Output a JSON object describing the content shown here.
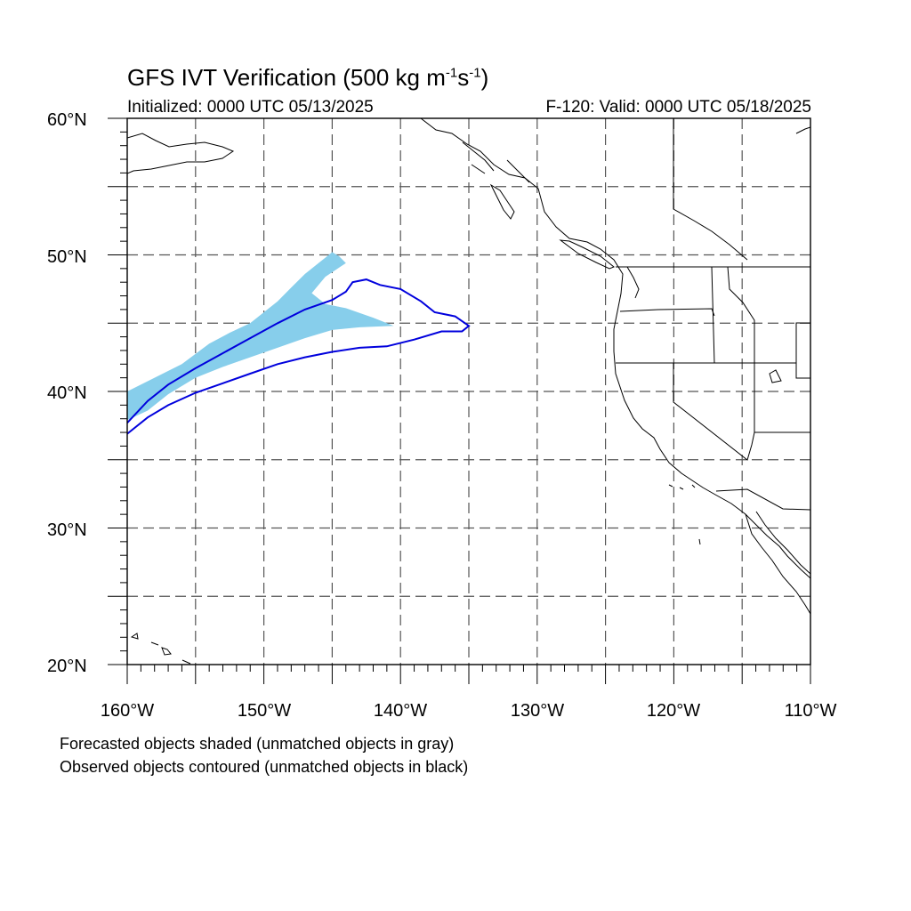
{
  "title": {
    "main": "GFS IVT Verification (500 kg m",
    "sup1": "-1",
    "mid": "s",
    "sup2": "-1",
    "end": ")"
  },
  "subtitle_left": "Initialized: 0000 UTC 05/13/2025",
  "subtitle_right": "F-120: Valid: 0000 UTC 05/18/2025",
  "map": {
    "lon_range": [
      -160,
      -110
    ],
    "lat_range": [
      20,
      60
    ],
    "lat_ticks": [
      {
        "value": 60,
        "label": "60°N"
      },
      {
        "value": 50,
        "label": "50°N"
      },
      {
        "value": 40,
        "label": "40°N"
      },
      {
        "value": 30,
        "label": "30°N"
      },
      {
        "value": 20,
        "label": "20°N"
      }
    ],
    "lon_ticks": [
      {
        "value": -160,
        "label": "160°W"
      },
      {
        "value": -150,
        "label": "150°W"
      },
      {
        "value": -140,
        "label": "140°W"
      },
      {
        "value": -130,
        "label": "130°W"
      },
      {
        "value": -120,
        "label": "120°W"
      },
      {
        "value": -110,
        "label": "110°W"
      }
    ],
    "grid_spacing_deg": 5,
    "forecast_fill_color": "#87ceeb",
    "observed_contour_color": "#0000dd",
    "forecast_object": [
      [
        -160,
        40
      ],
      [
        -158,
        41
      ],
      [
        -156,
        42
      ],
      [
        -154,
        43.5
      ],
      [
        -152.5,
        44.3
      ],
      [
        -151,
        45
      ],
      [
        -150,
        45.8
      ],
      [
        -149,
        46.6
      ],
      [
        -148,
        47.6
      ],
      [
        -147,
        48.6
      ],
      [
        -146,
        49.4
      ],
      [
        -145.5,
        49.8
      ],
      [
        -145,
        50.2
      ],
      [
        -144.5,
        49.9
      ],
      [
        -144,
        49.4
      ],
      [
        -145.5,
        48.4
      ],
      [
        -146.5,
        47.2
      ],
      [
        -145.5,
        46.4
      ],
      [
        -144,
        46.1
      ],
      [
        -142,
        45.4
      ],
      [
        -140.5,
        44.8
      ],
      [
        -143,
        44.7
      ],
      [
        -145,
        44.5
      ],
      [
        -147,
        43.9
      ],
      [
        -149,
        43.2
      ],
      [
        -151,
        42.5
      ],
      [
        -153,
        41.8
      ],
      [
        -155,
        41
      ],
      [
        -157,
        39.8
      ],
      [
        -158.5,
        38.6
      ],
      [
        -160,
        37.9
      ]
    ],
    "observed_object": [
      [
        -160,
        37.7
      ],
      [
        -158.5,
        39.3
      ],
      [
        -157,
        40.5
      ],
      [
        -155,
        41.7
      ],
      [
        -153,
        42.8
      ],
      [
        -151,
        43.9
      ],
      [
        -149,
        45
      ],
      [
        -147,
        46
      ],
      [
        -145,
        46.7
      ],
      [
        -144,
        47.3
      ],
      [
        -143.5,
        48
      ],
      [
        -142.5,
        48.2
      ],
      [
        -141.5,
        47.8
      ],
      [
        -140,
        47.5
      ],
      [
        -138.5,
        46.6
      ],
      [
        -137.5,
        45.8
      ],
      [
        -136,
        45.5
      ],
      [
        -135,
        44.8
      ],
      [
        -135.5,
        44.4
      ],
      [
        -137,
        44.4
      ],
      [
        -139,
        43.8
      ],
      [
        -141,
        43.3
      ],
      [
        -143,
        43.2
      ],
      [
        -145,
        42.9
      ],
      [
        -147,
        42.5
      ],
      [
        -149,
        42
      ],
      [
        -151,
        41.3
      ],
      [
        -153,
        40.6
      ],
      [
        -155,
        39.9
      ],
      [
        -157,
        39
      ],
      [
        -158.5,
        38.1
      ],
      [
        -160,
        36.9
      ]
    ]
  },
  "caption_line1": "Forecasted objects shaded (unmatched objects in gray)",
  "caption_line2": "Observed objects contoured (unmatched objects in black)"
}
